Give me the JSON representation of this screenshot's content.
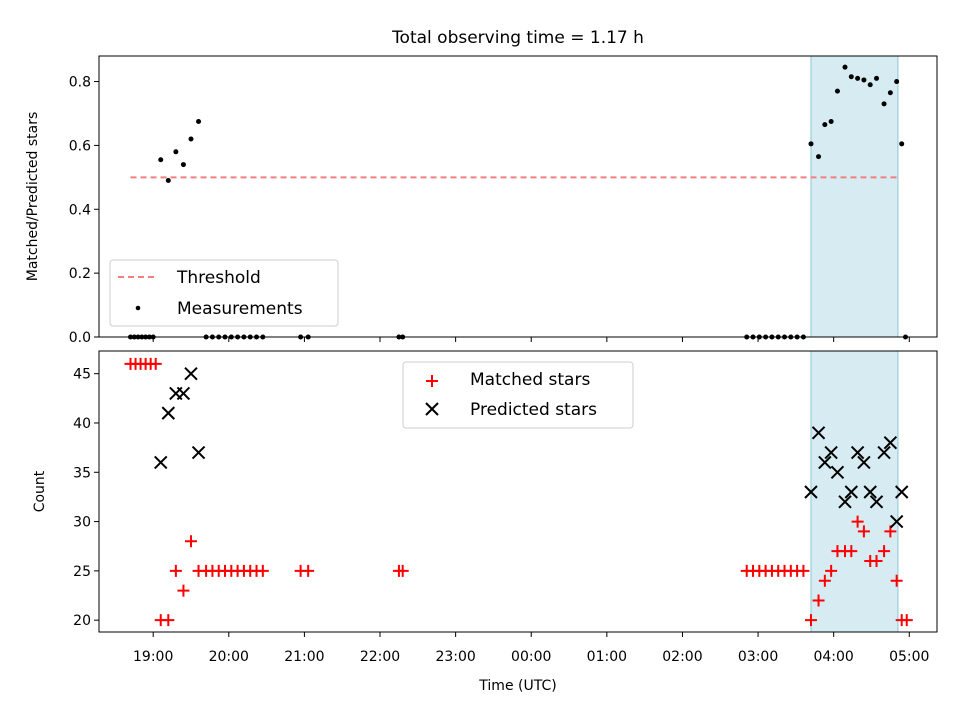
{
  "chart_data": [
    {
      "type": "scatter",
      "title": "Total observing time = 1.17 h",
      "ylabel": "Matched/Predicted stars",
      "ylim": [
        0,
        0.88
      ],
      "yticks": [
        "0.0",
        "0.2",
        "0.4",
        "0.6",
        "0.8"
      ],
      "shaded_interval": {
        "start": "03:42",
        "end": "04:51",
        "color": "#add8e6"
      },
      "threshold": {
        "name": "Threshold",
        "value": 0.5,
        "color": "#f08080",
        "start": "18:42",
        "end": "04:51"
      },
      "series": [
        {
          "name": "Measurements",
          "color": "#000000",
          "points": [
            [
              "18:42",
              0
            ],
            [
              "18:45",
              0
            ],
            [
              "18:48",
              0
            ],
            [
              "18:51",
              0
            ],
            [
              "18:54",
              0
            ],
            [
              "18:57",
              0
            ],
            [
              "19:00",
              0
            ],
            [
              "19:06",
              0.555
            ],
            [
              "19:12",
              0.49
            ],
            [
              "19:18",
              0.58
            ],
            [
              "19:24",
              0.54
            ],
            [
              "19:30",
              0.62
            ],
            [
              "19:36",
              0.675
            ],
            [
              "19:42",
              0
            ],
            [
              "19:47",
              0
            ],
            [
              "19:52",
              0
            ],
            [
              "19:57",
              0
            ],
            [
              "20:02",
              0
            ],
            [
              "20:07",
              0
            ],
            [
              "20:12",
              0
            ],
            [
              "20:17",
              0
            ],
            [
              "20:22",
              0
            ],
            [
              "20:27",
              0
            ],
            [
              "20:57",
              0
            ],
            [
              "21:03",
              0
            ],
            [
              "22:15",
              0
            ],
            [
              "22:18",
              0
            ],
            [
              "02:51",
              0
            ],
            [
              "02:56",
              0
            ],
            [
              "03:01",
              0
            ],
            [
              "03:06",
              0
            ],
            [
              "03:11",
              0
            ],
            [
              "03:16",
              0
            ],
            [
              "03:21",
              0
            ],
            [
              "03:26",
              0
            ],
            [
              "03:31",
              0
            ],
            [
              "03:36",
              0
            ],
            [
              "03:42",
              0.605
            ],
            [
              "03:48",
              0.565
            ],
            [
              "03:53",
              0.665
            ],
            [
              "03:58",
              0.675
            ],
            [
              "04:03",
              0.77
            ],
            [
              "04:09",
              0.845
            ],
            [
              "04:14",
              0.815
            ],
            [
              "04:19",
              0.81
            ],
            [
              "04:24",
              0.805
            ],
            [
              "04:29",
              0.79
            ],
            [
              "04:34",
              0.81
            ],
            [
              "04:40",
              0.73
            ],
            [
              "04:45",
              0.765
            ],
            [
              "04:50",
              0.8
            ],
            [
              "04:54",
              0.605
            ],
            [
              "04:57",
              0
            ]
          ]
        }
      ],
      "legend": {
        "position": "lower-left",
        "entries": [
          "Threshold",
          "Measurements"
        ]
      }
    },
    {
      "type": "scatter",
      "xlabel": "Time (UTC)",
      "ylabel": "Count",
      "ylim": [
        18.8,
        47.3
      ],
      "yticks": [
        "20",
        "25",
        "30",
        "35",
        "40",
        "45"
      ],
      "xticks": [
        "19:00",
        "20:00",
        "21:00",
        "22:00",
        "23:00",
        "00:00",
        "01:00",
        "02:00",
        "03:00",
        "04:00",
        "05:00"
      ],
      "shaded_interval": {
        "start": "03:42",
        "end": "04:51",
        "color": "#add8e6"
      },
      "series": [
        {
          "name": "Matched stars",
          "marker": "plus",
          "color": "#ff0000",
          "points": [
            [
              "18:42",
              46
            ],
            [
              "18:46",
              46
            ],
            [
              "18:50",
              46
            ],
            [
              "18:54",
              46
            ],
            [
              "18:58",
              46
            ],
            [
              "19:02",
              46
            ],
            [
              "19:06",
              20
            ],
            [
              "19:12",
              20
            ],
            [
              "19:18",
              25
            ],
            [
              "19:24",
              23
            ],
            [
              "19:30",
              28
            ],
            [
              "19:36",
              25
            ],
            [
              "19:42",
              25
            ],
            [
              "19:47",
              25
            ],
            [
              "19:52",
              25
            ],
            [
              "19:57",
              25
            ],
            [
              "20:02",
              25
            ],
            [
              "20:07",
              25
            ],
            [
              "20:12",
              25
            ],
            [
              "20:17",
              25
            ],
            [
              "20:22",
              25
            ],
            [
              "20:27",
              25
            ],
            [
              "20:57",
              25
            ],
            [
              "21:03",
              25
            ],
            [
              "22:15",
              25
            ],
            [
              "22:18",
              25
            ],
            [
              "02:51",
              25
            ],
            [
              "02:56",
              25
            ],
            [
              "03:01",
              25
            ],
            [
              "03:06",
              25
            ],
            [
              "03:11",
              25
            ],
            [
              "03:16",
              25
            ],
            [
              "03:21",
              25
            ],
            [
              "03:26",
              25
            ],
            [
              "03:31",
              25
            ],
            [
              "03:36",
              25
            ],
            [
              "03:42",
              20
            ],
            [
              "03:48",
              22
            ],
            [
              "03:53",
              24
            ],
            [
              "03:58",
              25
            ],
            [
              "04:03",
              27
            ],
            [
              "04:09",
              27
            ],
            [
              "04:14",
              27
            ],
            [
              "04:19",
              30
            ],
            [
              "04:24",
              29
            ],
            [
              "04:29",
              26
            ],
            [
              "04:34",
              26
            ],
            [
              "04:40",
              27
            ],
            [
              "04:45",
              29
            ],
            [
              "04:50",
              24
            ],
            [
              "04:54",
              20
            ],
            [
              "04:58",
              20
            ]
          ]
        },
        {
          "name": "Predicted stars",
          "marker": "x",
          "color": "#000000",
          "points": [
            [
              "19:06",
              36
            ],
            [
              "19:12",
              41
            ],
            [
              "19:18",
              43
            ],
            [
              "19:24",
              43
            ],
            [
              "19:30",
              45
            ],
            [
              "19:36",
              37
            ],
            [
              "03:42",
              33
            ],
            [
              "03:48",
              39
            ],
            [
              "03:53",
              36
            ],
            [
              "03:58",
              37
            ],
            [
              "04:03",
              35
            ],
            [
              "04:09",
              32
            ],
            [
              "04:14",
              33
            ],
            [
              "04:19",
              37
            ],
            [
              "04:24",
              36
            ],
            [
              "04:29",
              33
            ],
            [
              "04:34",
              32
            ],
            [
              "04:40",
              37
            ],
            [
              "04:45",
              38
            ],
            [
              "04:50",
              30
            ],
            [
              "04:54",
              33
            ]
          ]
        }
      ],
      "legend": {
        "position": "upper-center",
        "entries": [
          "Matched stars",
          "Predicted stars"
        ]
      }
    }
  ]
}
